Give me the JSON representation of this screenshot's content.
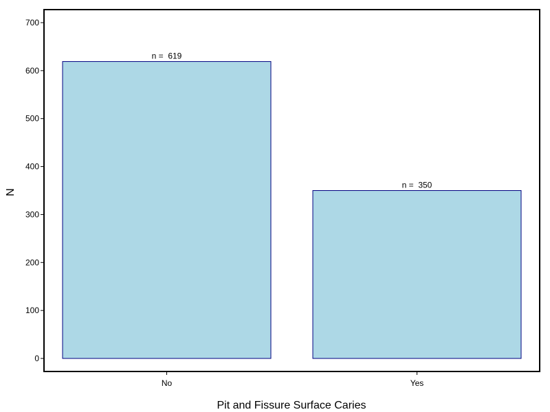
{
  "chart_data": {
    "type": "bar",
    "categories": [
      "No",
      "Yes"
    ],
    "values": [
      619,
      350
    ],
    "data_labels": [
      "n =  619",
      "n =  350"
    ],
    "title": "",
    "xlabel": "Pit and Fissure Surface Caries",
    "ylabel": "N",
    "ylim": [
      0,
      700
    ],
    "yticks": [
      0,
      100,
      200,
      300,
      400,
      500,
      600,
      700
    ],
    "grid": false,
    "legend": "none",
    "colors": {
      "bar_fill": "#add8e6",
      "bar_stroke": "#000080",
      "axis": "#000000"
    }
  }
}
